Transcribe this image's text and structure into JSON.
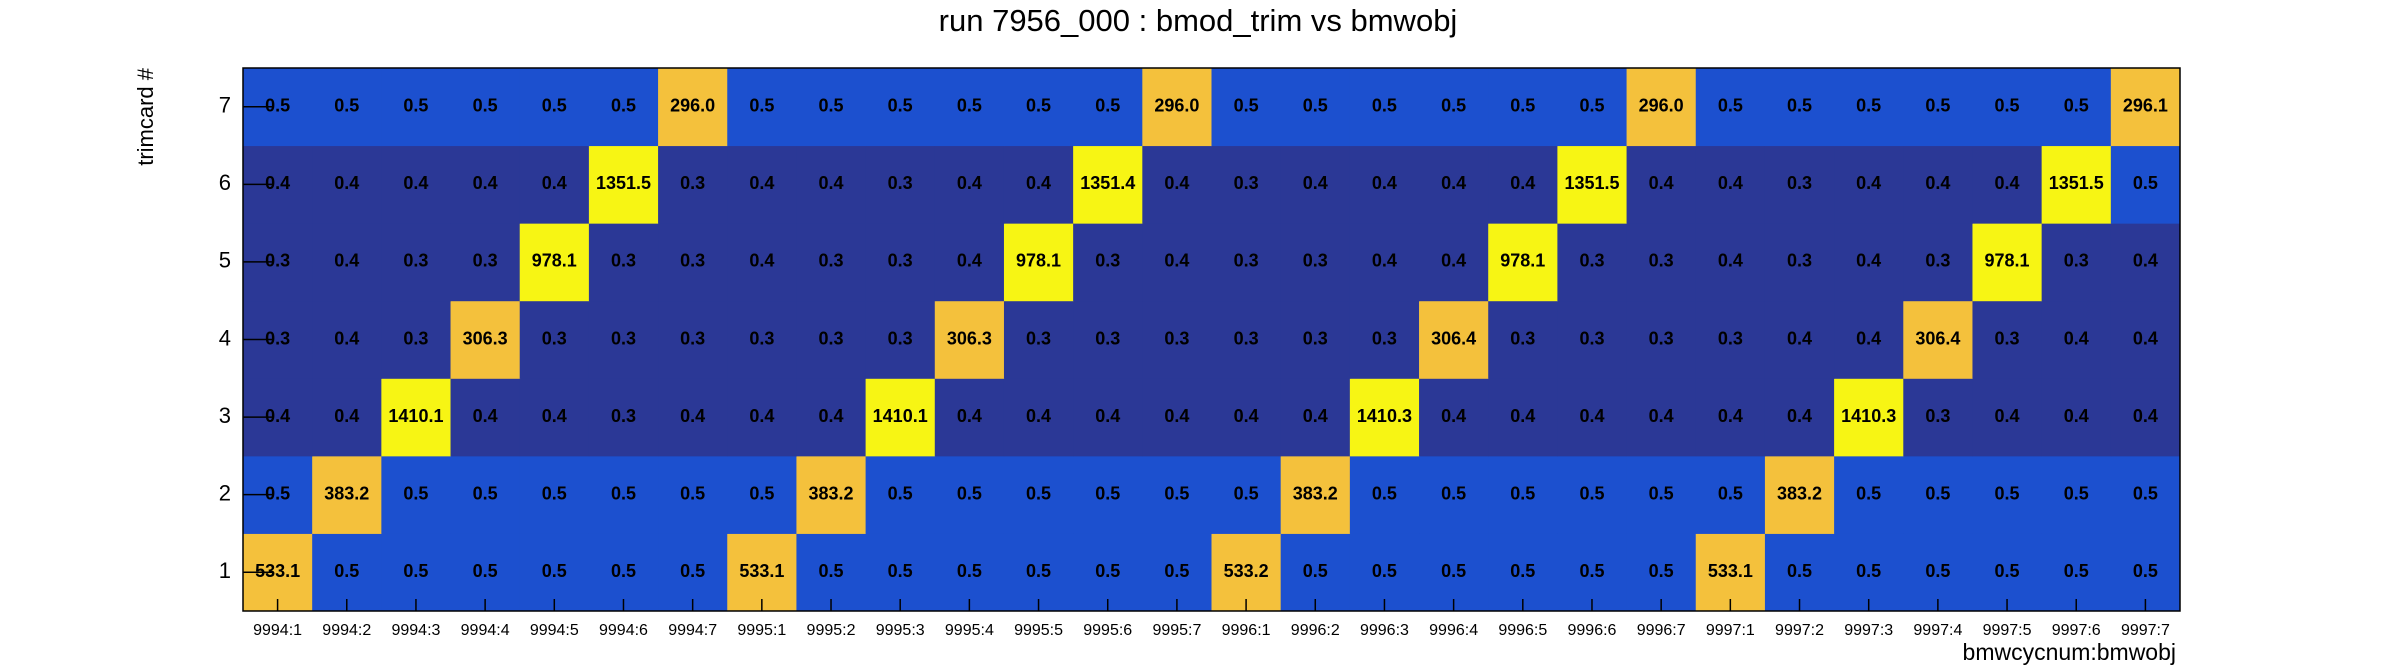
{
  "chart_data": {
    "type": "heatmap",
    "title": "run 7956_000 : bmod_trim vs bmwobj",
    "x_label": "bmwcycnum:bmwobj",
    "y_label": "trimcard #",
    "categories": [
      "9994:1",
      "9994:2",
      "9994:3",
      "9994:4",
      "9994:5",
      "9994:6",
      "9994:7",
      "9995:1",
      "9995:2",
      "9995:3",
      "9995:4",
      "9995:5",
      "9995:6",
      "9995:7",
      "9996:1",
      "9996:2",
      "9996:3",
      "9996:4",
      "9996:5",
      "9996:6",
      "9996:7",
      "9997:1",
      "9997:2",
      "9997:3",
      "9997:4",
      "9997:5",
      "9997:6",
      "9997:7"
    ],
    "y_categories": [
      "1",
      "2",
      "3",
      "4",
      "5",
      "6",
      "7"
    ],
    "z": [
      [
        533.1,
        0.5,
        0.5,
        0.5,
        0.5,
        0.5,
        0.5,
        533.1,
        0.5,
        0.5,
        0.5,
        0.5,
        0.5,
        0.5,
        533.2,
        0.5,
        0.5,
        0.5,
        0.5,
        0.5,
        0.5,
        533.1,
        0.5,
        0.5,
        0.5,
        0.5,
        0.5,
        0.5
      ],
      [
        0.5,
        383.2,
        0.5,
        0.5,
        0.5,
        0.5,
        0.5,
        0.5,
        383.2,
        0.5,
        0.5,
        0.5,
        0.5,
        0.5,
        0.5,
        383.2,
        0.5,
        0.5,
        0.5,
        0.5,
        0.5,
        0.5,
        383.2,
        0.5,
        0.5,
        0.5,
        0.5,
        0.5
      ],
      [
        0.4,
        0.4,
        1410.1,
        0.4,
        0.4,
        0.3,
        0.4,
        0.4,
        0.4,
        1410.1,
        0.4,
        0.4,
        0.4,
        0.4,
        0.4,
        0.4,
        1410.3,
        0.4,
        0.4,
        0.4,
        0.4,
        0.4,
        0.4,
        1410.3,
        0.3,
        0.4,
        0.4,
        0.4
      ],
      [
        0.3,
        0.4,
        0.3,
        306.3,
        0.3,
        0.3,
        0.3,
        0.3,
        0.3,
        0.3,
        306.3,
        0.3,
        0.3,
        0.3,
        0.3,
        0.3,
        0.3,
        306.4,
        0.3,
        0.3,
        0.3,
        0.3,
        0.4,
        0.4,
        306.4,
        0.3,
        0.4,
        0.4
      ],
      [
        0.3,
        0.4,
        0.3,
        0.3,
        978.1,
        0.3,
        0.3,
        0.4,
        0.3,
        0.3,
        0.4,
        978.1,
        0.3,
        0.4,
        0.3,
        0.3,
        0.4,
        0.4,
        978.1,
        0.3,
        0.3,
        0.4,
        0.3,
        0.4,
        0.3,
        978.1,
        0.3,
        0.4
      ],
      [
        0.4,
        0.4,
        0.4,
        0.4,
        0.4,
        1351.5,
        0.3,
        0.4,
        0.4,
        0.3,
        0.4,
        0.4,
        1351.4,
        0.4,
        0.3,
        0.4,
        0.4,
        0.4,
        0.4,
        1351.5,
        0.4,
        0.4,
        0.3,
        0.4,
        0.4,
        0.4,
        1351.5,
        0.5
      ],
      [
        0.5,
        0.5,
        0.5,
        0.5,
        0.5,
        0.5,
        296.0,
        0.5,
        0.5,
        0.5,
        0.5,
        0.5,
        0.5,
        296.0,
        0.5,
        0.5,
        0.5,
        0.5,
        0.5,
        0.5,
        296.0,
        0.5,
        0.5,
        0.5,
        0.5,
        0.5,
        0.5,
        296.1
      ]
    ],
    "value_labels": [
      [
        "533.1",
        "0.5",
        "0.5",
        "0.5",
        "0.5",
        "0.5",
        "0.5",
        "533.1",
        "0.5",
        "0.5",
        "0.5",
        "0.5",
        "0.5",
        "0.5",
        "533.2",
        "0.5",
        "0.5",
        "0.5",
        "0.5",
        "0.5",
        "0.5",
        "533.1",
        "0.5",
        "0.5",
        "0.5",
        "0.5",
        "0.5",
        "0.5"
      ],
      [
        "0.5",
        "383.2",
        "0.5",
        "0.5",
        "0.5",
        "0.5",
        "0.5",
        "0.5",
        "383.2",
        "0.5",
        "0.5",
        "0.5",
        "0.5",
        "0.5",
        "0.5",
        "383.2",
        "0.5",
        "0.5",
        "0.5",
        "0.5",
        "0.5",
        "0.5",
        "383.2",
        "0.5",
        "0.5",
        "0.5",
        "0.5",
        "0.5"
      ],
      [
        "0.4",
        "0.4",
        "1410.1",
        "0.4",
        "0.4",
        "0.3",
        "0.4",
        "0.4",
        "0.4",
        "1410.1",
        "0.4",
        "0.4",
        "0.4",
        "0.4",
        "0.4",
        "0.4",
        "1410.3",
        "0.4",
        "0.4",
        "0.4",
        "0.4",
        "0.4",
        "0.4",
        "1410.3",
        "0.3",
        "0.4",
        "0.4",
        "0.4"
      ],
      [
        "0.3",
        "0.4",
        "0.3",
        "306.3",
        "0.3",
        "0.3",
        "0.3",
        "0.3",
        "0.3",
        "0.3",
        "306.3",
        "0.3",
        "0.3",
        "0.3",
        "0.3",
        "0.3",
        "0.3",
        "306.4",
        "0.3",
        "0.3",
        "0.3",
        "0.3",
        "0.4",
        "0.4",
        "306.4",
        "0.3",
        "0.4",
        "0.4"
      ],
      [
        "0.3",
        "0.4",
        "0.3",
        "0.3",
        "978.1",
        "0.3",
        "0.3",
        "0.4",
        "0.3",
        "0.3",
        "0.4",
        "978.1",
        "0.3",
        "0.4",
        "0.3",
        "0.3",
        "0.4",
        "0.4",
        "978.1",
        "0.3",
        "0.3",
        "0.4",
        "0.3",
        "0.4",
        "0.3",
        "978.1",
        "0.3",
        "0.4"
      ],
      [
        "0.4",
        "0.4",
        "0.4",
        "0.4",
        "0.4",
        "1351.5",
        "0.3",
        "0.4",
        "0.4",
        "0.3",
        "0.4",
        "0.4",
        "1351.4",
        "0.4",
        "0.3",
        "0.4",
        "0.4",
        "0.4",
        "0.4",
        "1351.5",
        "0.4",
        "0.4",
        "0.3",
        "0.4",
        "0.4",
        "0.4",
        "1351.5",
        "0.5"
      ],
      [
        "0.5",
        "0.5",
        "0.5",
        "0.5",
        "0.5",
        "0.5",
        "296.0",
        "0.5",
        "0.5",
        "0.5",
        "0.5",
        "0.5",
        "0.5",
        "296.0",
        "0.5",
        "0.5",
        "0.5",
        "0.5",
        "0.5",
        "0.5",
        "296.0",
        "0.5",
        "0.5",
        "0.5",
        "0.5",
        "0.5",
        "0.5",
        "296.1"
      ]
    ],
    "color_bounds": [
      0.45,
      100,
      700
    ],
    "colors": [
      "#2b3896",
      "#1c50cf",
      "#f4c13c",
      "#f7f514"
    ]
  }
}
